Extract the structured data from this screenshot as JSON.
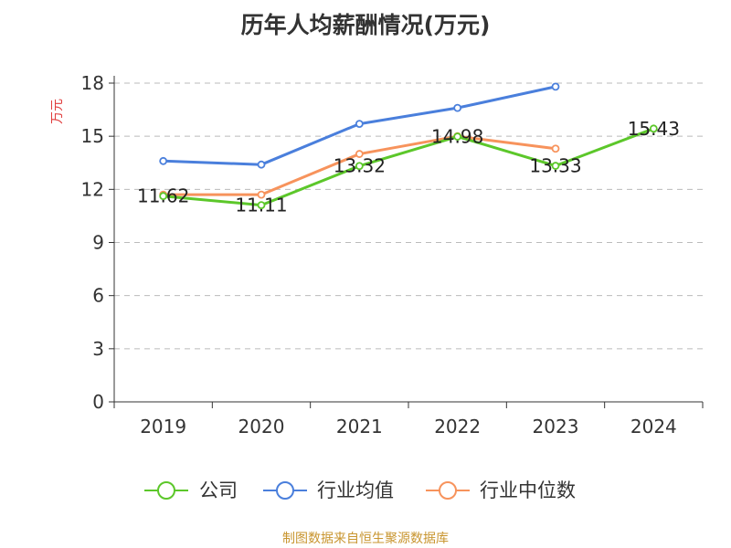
{
  "chart_data": {
    "type": "line",
    "title": "历年人均薪酬情况(万元)",
    "ylabel": "万元",
    "xlabel": "",
    "categories": [
      "2019",
      "2020",
      "2021",
      "2022",
      "2023",
      "2024"
    ],
    "ylim": [
      0,
      18
    ],
    "yticks": [
      0,
      3,
      6,
      9,
      12,
      15,
      18
    ],
    "grid": true,
    "legend_position": "bottom",
    "series": [
      {
        "name": "公司",
        "color": "#5cc72a",
        "values": [
          11.62,
          11.11,
          13.32,
          14.98,
          13.33,
          15.43
        ],
        "labels": [
          "11.62",
          "11.11",
          "13.32",
          "14.98",
          "13.33",
          "15.43"
        ]
      },
      {
        "name": "行业均值",
        "color": "#4a7fdc",
        "values": [
          13.6,
          13.4,
          15.7,
          16.6,
          17.8,
          null
        ]
      },
      {
        "name": "行业中位数",
        "color": "#f7935c",
        "values": [
          11.7,
          11.7,
          14.0,
          15.0,
          14.3,
          null
        ]
      }
    ]
  },
  "source": "制图数据来自恒生聚源数据库"
}
